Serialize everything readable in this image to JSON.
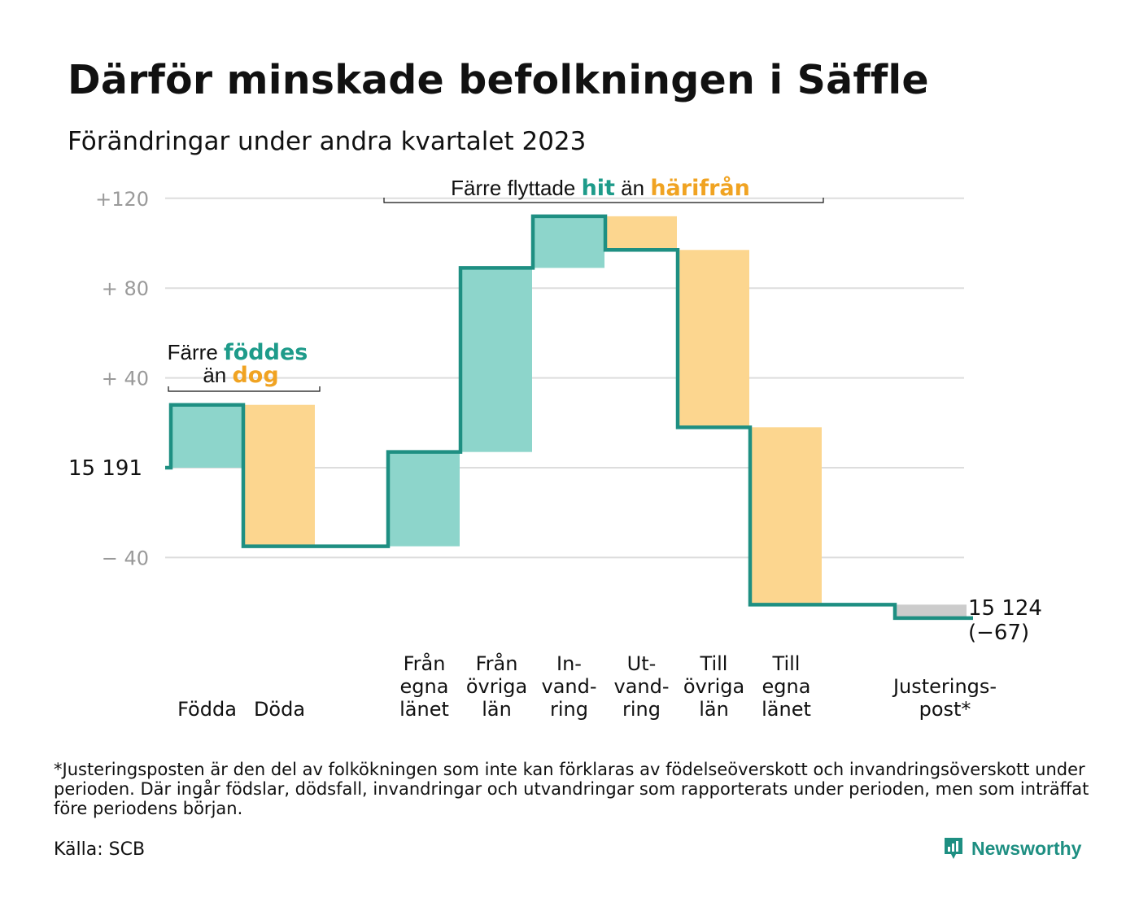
{
  "title": "Därför minskade befolkningen i Säffle",
  "subtitle": "Förändringar under andra kvartalet 2023",
  "chart_data": {
    "type": "waterfall",
    "start_value": 15191,
    "start_label": "15 191",
    "end_value": 15124,
    "end_label": "15 124",
    "end_change_label": "(−67)",
    "y_ticks": [
      {
        "value": 120,
        "label": "+120"
      },
      {
        "value": 80,
        "label": "+ 80"
      },
      {
        "value": 40,
        "label": "+ 40"
      },
      {
        "value": 0,
        "label": "15 191"
      },
      {
        "value": -40,
        "label": "− 40"
      }
    ],
    "ylim": [
      -67,
      120
    ],
    "grid": true,
    "colors": {
      "increase": "#8dd5cb",
      "decrease": "#fcd68f",
      "adjustment": "#cccccc",
      "line": "#1e8f82",
      "hit": "#1e9b8a",
      "harifran": "#f0a322",
      "grid": "#dddddd"
    },
    "steps": [
      {
        "category": "Födda",
        "label_lines": [
          "Födda"
        ],
        "value": 28,
        "kind": "increase"
      },
      {
        "category": "Döda",
        "label_lines": [
          "Döda"
        ],
        "value": -63,
        "kind": "decrease"
      },
      {
        "category": "",
        "label_lines": [],
        "value": 0,
        "kind": "gap"
      },
      {
        "category": "Från egna länet",
        "label_lines": [
          "Från",
          "egna",
          "länet"
        ],
        "value": 42,
        "kind": "increase"
      },
      {
        "category": "Från övriga län",
        "label_lines": [
          "Från",
          "övriga",
          "län"
        ],
        "value": 82,
        "kind": "increase"
      },
      {
        "category": "Invandring",
        "label_lines": [
          "In-",
          "vand-",
          "ring"
        ],
        "value": 23,
        "kind": "increase"
      },
      {
        "category": "Utvandring",
        "label_lines": [
          "Ut-",
          "vand-",
          "ring"
        ],
        "value": -15,
        "kind": "decrease"
      },
      {
        "category": "Till övriga län",
        "label_lines": [
          "Till",
          "övriga",
          "län"
        ],
        "value": -79,
        "kind": "decrease"
      },
      {
        "category": "Till egna länet",
        "label_lines": [
          "Till",
          "egna",
          "länet"
        ],
        "value": -79,
        "kind": "decrease"
      },
      {
        "category": "",
        "label_lines": [],
        "value": 0,
        "kind": "gap"
      },
      {
        "category": "Justeringspost*",
        "label_lines": [
          "Justerings-",
          "post*"
        ],
        "value": -6,
        "kind": "adjustment"
      }
    ],
    "annotations": [
      {
        "name": "births-annotation",
        "parts": [
          [
            "Färre ",
            "plain"
          ],
          [
            "föddes",
            "hit"
          ]
        ],
        "parts2": [
          [
            "än ",
            "plain"
          ],
          [
            "dog",
            "harifran"
          ]
        ]
      },
      {
        "name": "migration-annotation",
        "parts": [
          [
            "Färre flyttade ",
            "plain"
          ],
          [
            "hit",
            "hit"
          ],
          [
            " än ",
            "plain"
          ],
          [
            "härifrån",
            "harifran"
          ]
        ]
      }
    ]
  },
  "footnote": "*Justeringsposten är den del av folkökningen som inte kan förklaras av födelseöverskott och invandringsöverskott under perioden. Där ingår födslar, dödsfall, invandringar och utvandringar som rapporterats under perioden, men som inträffat före periodens början.",
  "source": "Källa: SCB",
  "brand": {
    "name": "Newsworthy",
    "icon": "newsworthy-logo-icon"
  }
}
